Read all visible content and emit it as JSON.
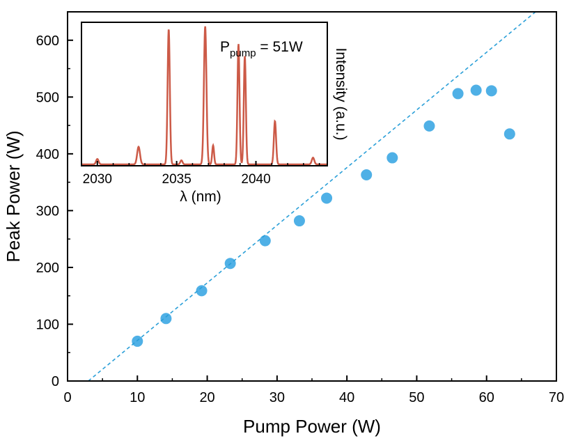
{
  "chart_data": [
    {
      "type": "scatter",
      "xlabel": "Pump Power (W)",
      "ylabel": "Peak Power (W)",
      "xlim": [
        0,
        70
      ],
      "ylim": [
        0,
        650
      ],
      "xticks": [
        "0",
        "10",
        "20",
        "30",
        "40",
        "50",
        "60",
        "70"
      ],
      "yticks": [
        "0",
        "100",
        "200",
        "300",
        "400",
        "500",
        "600"
      ],
      "point_color": "#4fb0e6",
      "fit_color": "#2a9fd8",
      "series": [
        {
          "values": [
            [
              10.0,
              70
            ],
            [
              14.1,
              110
            ],
            [
              19.2,
              159
            ],
            [
              23.3,
              207
            ],
            [
              28.3,
              247
            ],
            [
              33.2,
              282
            ],
            [
              37.1,
              322
            ],
            [
              42.8,
              363
            ],
            [
              46.5,
              393
            ],
            [
              51.8,
              449
            ],
            [
              55.9,
              506
            ],
            [
              58.5,
              512
            ],
            [
              60.7,
              511
            ],
            [
              63.3,
              435
            ]
          ]
        }
      ],
      "fit_line": [
        [
          1.0,
          -20
        ],
        [
          68.0,
          660
        ]
      ]
    },
    {
      "type": "line",
      "xlabel": "λ (nm)",
      "ylabel": "Intensity (a.u.)",
      "xlim": [
        2029,
        2044.5
      ],
      "ylim": [
        0,
        1.05
      ],
      "xticks": [
        "2030",
        "2035",
        "2040"
      ],
      "annotation_main": "P",
      "annotation_sub": "pump",
      "annotation_rest": " = 51W",
      "line_color": "#cc5a47",
      "peaks": [
        {
          "center": 2030.0,
          "height": 0.04,
          "width": 0.08
        },
        {
          "center": 2032.6,
          "height": 0.13,
          "width": 0.09
        },
        {
          "center": 2034.5,
          "height": 1.0,
          "width": 0.07
        },
        {
          "center": 2035.3,
          "height": 0.03,
          "width": 0.07
        },
        {
          "center": 2036.8,
          "height": 1.02,
          "width": 0.08
        },
        {
          "center": 2037.3,
          "height": 0.14,
          "width": 0.06
        },
        {
          "center": 2038.9,
          "height": 0.89,
          "width": 0.065
        },
        {
          "center": 2039.3,
          "height": 0.8,
          "width": 0.065
        },
        {
          "center": 2041.2,
          "height": 0.32,
          "width": 0.07
        },
        {
          "center": 2043.6,
          "height": 0.05,
          "width": 0.08
        }
      ]
    }
  ]
}
